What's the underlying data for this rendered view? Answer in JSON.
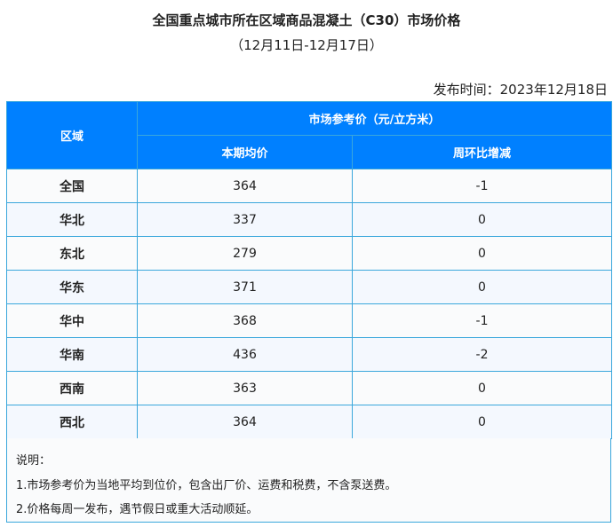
{
  "title": "全国重点城市所在区域商品混凝土（C30）市场价格",
  "subtitle": "（12月11日-12月17日）",
  "publish_date": "发布时间：2023年12月18日",
  "table": {
    "header_region": "区域",
    "header_group": "市场参考价（元/立方米）",
    "header_avg": "本期均价",
    "header_change": "周环比增减",
    "rows": [
      {
        "region": "全国",
        "avg": "364",
        "change": "-1"
      },
      {
        "region": "华北",
        "avg": "337",
        "change": "0"
      },
      {
        "region": "东北",
        "avg": "279",
        "change": "0"
      },
      {
        "region": "华东",
        "avg": "371",
        "change": "0"
      },
      {
        "region": "华中",
        "avg": "368",
        "change": "-1"
      },
      {
        "region": "华南",
        "avg": "436",
        "change": "-2"
      },
      {
        "region": "西南",
        "avg": "363",
        "change": "0"
      },
      {
        "region": "西北",
        "avg": "364",
        "change": "0"
      }
    ]
  },
  "notes": {
    "heading": "说明：",
    "items": [
      "1.市场参考价为当地平均到位价，包含出厂价、运费和税费，不含泵送费。",
      "2.价格每周一发布，遇节假日或重大活动顺延。"
    ]
  }
}
